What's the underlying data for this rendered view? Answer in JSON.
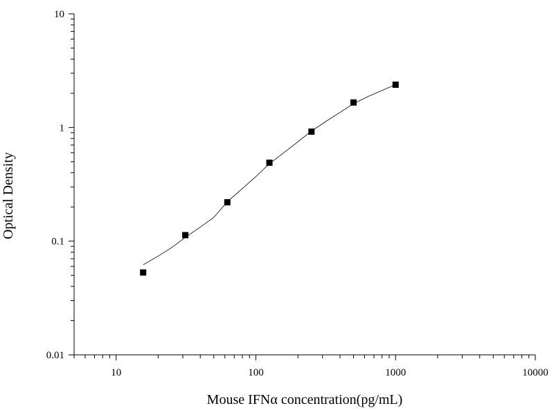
{
  "chart_data": {
    "type": "scatter",
    "title": "",
    "xlabel": "Mouse IFNα  concentration(pg/mL)",
    "ylabel": "Optical Density",
    "x_scale": "log",
    "y_scale": "log",
    "xlim": [
      5,
      10000
    ],
    "ylim": [
      0.01,
      10
    ],
    "x_ticks": [
      10,
      100,
      1000,
      10000
    ],
    "x_tick_labels": [
      "10",
      "100",
      "1000",
      "10000"
    ],
    "y_ticks": [
      0.01,
      0.1,
      1,
      10
    ],
    "y_tick_labels": [
      "0.01",
      "0.1",
      "1",
      "10"
    ],
    "grid": false,
    "legend": "none",
    "marker_color": "#000000",
    "curve_color": "#000000",
    "series": [
      {
        "x": [
          15.6,
          31.25,
          62.5,
          125,
          250,
          500,
          1000
        ],
        "y": [
          0.053,
          0.113,
          0.22,
          0.49,
          0.92,
          1.66,
          2.38
        ]
      }
    ],
    "fit_curve": {
      "x": [
        15.6,
        20,
        25,
        31.25,
        40,
        50,
        62.5,
        80,
        100,
        125,
        160,
        200,
        250,
        320,
        400,
        500,
        640,
        800,
        1000
      ],
      "y": [
        0.062,
        0.074,
        0.088,
        0.108,
        0.133,
        0.162,
        0.222,
        0.29,
        0.37,
        0.48,
        0.605,
        0.75,
        0.93,
        1.14,
        1.36,
        1.62,
        1.88,
        2.12,
        2.38
      ]
    }
  }
}
